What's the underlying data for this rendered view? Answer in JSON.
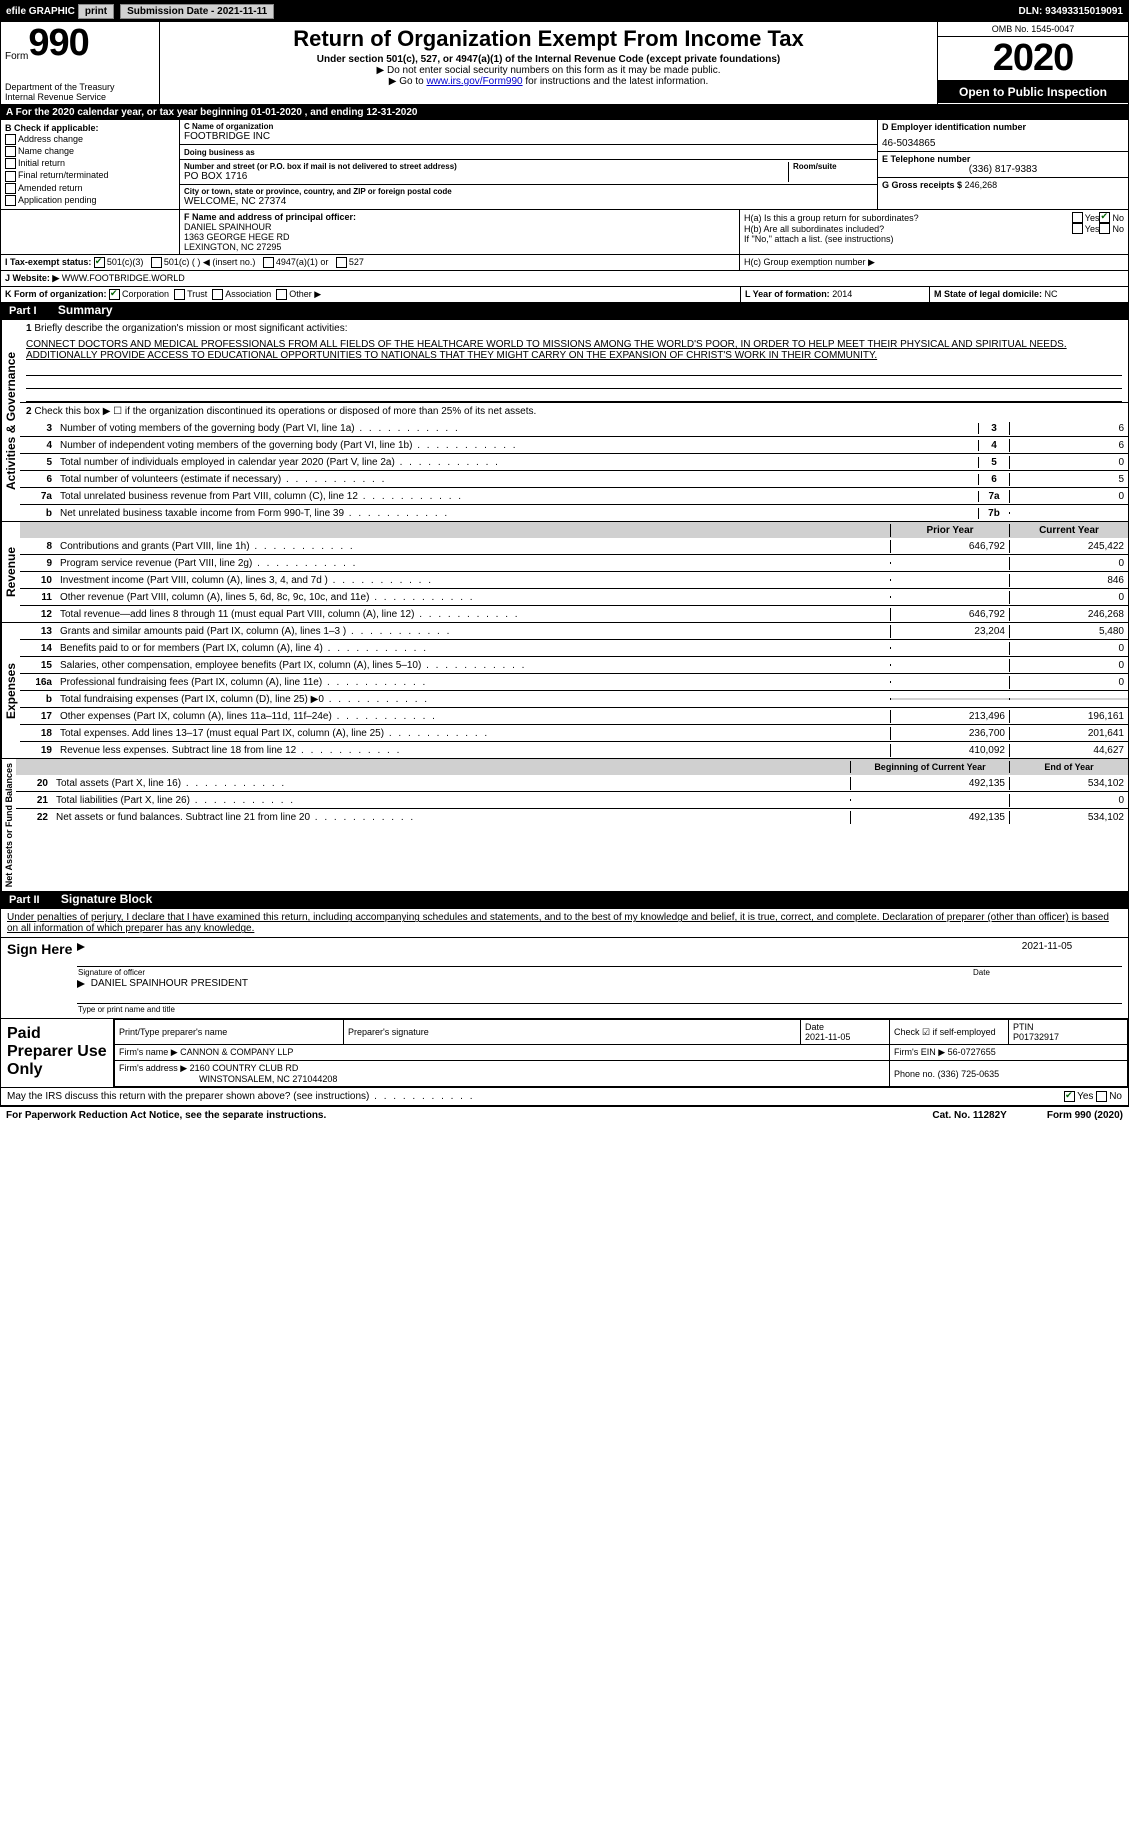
{
  "topbar": {
    "efile": "efile GRAPHIC",
    "print": "print",
    "sub_label": "Submission Date - 2021-11-11",
    "dln_label": "DLN: 93493315019091"
  },
  "header": {
    "form_word": "Form",
    "form_num": "990",
    "dept": "Department of the Treasury\nInternal Revenue Service",
    "title": "Return of Organization Exempt From Income Tax",
    "sub": "Under section 501(c), 527, or 4947(a)(1) of the Internal Revenue Code (except private foundations)",
    "sub2": "▶ Do not enter social security numbers on this form as it may be made public.",
    "sub3_pre": "▶ Go to ",
    "sub3_link": "www.irs.gov/Form990",
    "sub3_post": " for instructions and the latest information.",
    "omb": "OMB No. 1545-0047",
    "year": "2020",
    "open": "Open to Public Inspection"
  },
  "period": "A For the 2020 calendar year, or tax year beginning 01-01-2020    , and ending 12-31-2020",
  "boxB": {
    "title": "B Check if applicable:",
    "items": [
      "Address change",
      "Name change",
      "Initial return",
      "Final return/terminated",
      "Amended return",
      "Application pending"
    ]
  },
  "boxC": {
    "name_lbl": "C Name of organization",
    "name": "FOOTBRIDGE INC",
    "dba_lbl": "Doing business as",
    "addr_lbl": "Number and street (or P.O. box if mail is not delivered to street address)",
    "room_lbl": "Room/suite",
    "addr": "PO BOX 1716",
    "city_lbl": "City or town, state or province, country, and ZIP or foreign postal code",
    "city": "WELCOME, NC  27374"
  },
  "boxD": {
    "lbl": "D Employer identification number",
    "val": "46-5034865"
  },
  "boxE": {
    "lbl": "E Telephone number",
    "val": "(336) 817-9383"
  },
  "boxG": {
    "lbl": "G Gross receipts $",
    "val": "246,268"
  },
  "boxF": {
    "lbl": "F  Name and address of principal officer:",
    "name": "DANIEL SPAINHOUR",
    "addr1": "1363 GEORGE HEGE RD",
    "addr2": "LEXINGTON, NC  27295"
  },
  "boxH": {
    "a": "H(a)  Is this a group return for subordinates?",
    "b": "H(b)  Are all subordinates included?",
    "b2": "If \"No,\" attach a list. (see instructions)",
    "c": "H(c)  Group exemption number ▶",
    "yes": "Yes",
    "no": "No"
  },
  "rowI": {
    "lbl": "I   Tax-exempt status:",
    "o1": "501(c)(3)",
    "o2": "501(c) (  ) ◀ (insert no.)",
    "o3": "4947(a)(1) or",
    "o4": "527"
  },
  "rowJ": {
    "lbl": "J  Website: ▶",
    "val": "WWW.FOOTBRIDGE.WORLD"
  },
  "rowK": {
    "lbl": "K Form of organization:",
    "corp": "Corporation",
    "trust": "Trust",
    "assoc": "Association",
    "other": "Other ▶"
  },
  "rowL": {
    "lbl": "L Year of formation:",
    "val": "2014"
  },
  "rowM": {
    "lbl": "M State of legal domicile:",
    "val": "NC"
  },
  "part1": {
    "tag": "Part I",
    "title": "Summary"
  },
  "summary": {
    "l1": "Briefly describe the organization's mission or most significant activities:",
    "mission": "CONNECT DOCTORS AND MEDICAL PROFESSIONALS FROM ALL FIELDS OF THE HEALTHCARE WORLD TO MISSIONS AMONG THE WORLD'S POOR, IN ORDER TO HELP MEET THEIR PHYSICAL AND SPIRITUAL NEEDS. ADDITIONALLY PROVIDE ACCESS TO EDUCATIONAL OPPORTUNITIES TO NATIONALS THAT THEY MIGHT CARRY ON THE EXPANSION OF CHRIST'S WORK IN THEIR COMMUNITY.",
    "l2": "Check this box ▶ ☐ if the organization discontinued its operations or disposed of more than 25% of its net assets.",
    "rows": [
      {
        "n": "3",
        "d": "Number of voting members of the governing body (Part VI, line 1a)",
        "box": "3",
        "v": "6"
      },
      {
        "n": "4",
        "d": "Number of independent voting members of the governing body (Part VI, line 1b)",
        "box": "4",
        "v": "6"
      },
      {
        "n": "5",
        "d": "Total number of individuals employed in calendar year 2020 (Part V, line 2a)",
        "box": "5",
        "v": "0"
      },
      {
        "n": "6",
        "d": "Total number of volunteers (estimate if necessary)",
        "box": "6",
        "v": "5"
      },
      {
        "n": "7a",
        "d": "Total unrelated business revenue from Part VIII, column (C), line 12",
        "box": "7a",
        "v": "0"
      },
      {
        "n": "b",
        "d": "Net unrelated business taxable income from Form 990-T, line 39",
        "box": "7b",
        "v": ""
      }
    ]
  },
  "pycy": {
    "py": "Prior Year",
    "cy": "Current Year"
  },
  "revenue": {
    "label": "Revenue",
    "rows": [
      {
        "n": "8",
        "d": "Contributions and grants (Part VIII, line 1h)",
        "py": "646,792",
        "cy": "245,422"
      },
      {
        "n": "9",
        "d": "Program service revenue (Part VIII, line 2g)",
        "py": "",
        "cy": "0"
      },
      {
        "n": "10",
        "d": "Investment income (Part VIII, column (A), lines 3, 4, and 7d )",
        "py": "",
        "cy": "846"
      },
      {
        "n": "11",
        "d": "Other revenue (Part VIII, column (A), lines 5, 6d, 8c, 9c, 10c, and 11e)",
        "py": "",
        "cy": "0"
      },
      {
        "n": "12",
        "d": "Total revenue—add lines 8 through 11 (must equal Part VIII, column (A), line 12)",
        "py": "646,792",
        "cy": "246,268"
      }
    ]
  },
  "expenses": {
    "label": "Expenses",
    "rows": [
      {
        "n": "13",
        "d": "Grants and similar amounts paid (Part IX, column (A), lines 1–3 )",
        "py": "23,204",
        "cy": "5,480"
      },
      {
        "n": "14",
        "d": "Benefits paid to or for members (Part IX, column (A), line 4)",
        "py": "",
        "cy": "0"
      },
      {
        "n": "15",
        "d": "Salaries, other compensation, employee benefits (Part IX, column (A), lines 5–10)",
        "py": "",
        "cy": "0"
      },
      {
        "n": "16a",
        "d": "Professional fundraising fees (Part IX, column (A), line 11e)",
        "py": "",
        "cy": "0"
      },
      {
        "n": "b",
        "d": "Total fundraising expenses (Part IX, column (D), line 25) ▶0",
        "py": "",
        "cy": ""
      },
      {
        "n": "17",
        "d": "Other expenses (Part IX, column (A), lines 11a–11d, 11f–24e)",
        "py": "213,496",
        "cy": "196,161"
      },
      {
        "n": "18",
        "d": "Total expenses. Add lines 13–17 (must equal Part IX, column (A), line 25)",
        "py": "236,700",
        "cy": "201,641"
      },
      {
        "n": "19",
        "d": "Revenue less expenses. Subtract line 18 from line 12",
        "py": "410,092",
        "cy": "44,627"
      }
    ]
  },
  "bycy": {
    "by": "Beginning of Current Year",
    "ey": "End of Year"
  },
  "net": {
    "label": "Net Assets or Fund Balances",
    "rows": [
      {
        "n": "20",
        "d": "Total assets (Part X, line 16)",
        "py": "492,135",
        "cy": "534,102"
      },
      {
        "n": "21",
        "d": "Total liabilities (Part X, line 26)",
        "py": "",
        "cy": "0"
      },
      {
        "n": "22",
        "d": "Net assets or fund balances. Subtract line 21 from line 20",
        "py": "492,135",
        "cy": "534,102"
      }
    ]
  },
  "part2": {
    "tag": "Part II",
    "title": "Signature Block"
  },
  "sig": {
    "decl": "Under penalties of perjury, I declare that I have examined this return, including accompanying schedules and statements, and to the best of my knowledge and belief, it is true, correct, and complete. Declaration of preparer (other than officer) is based on all information of which preparer has any knowledge.",
    "here": "Sign Here",
    "sigoff": "Signature of officer",
    "date": "Date",
    "dateval": "2021-11-05",
    "name": "DANIEL SPAINHOUR  PRESIDENT",
    "name_lbl": "Type or print name and title"
  },
  "paid": {
    "label": "Paid Preparer Use Only",
    "h_prep": "Print/Type preparer's name",
    "h_sig": "Preparer's signature",
    "h_date": "Date",
    "dateval": "2021-11-05",
    "h_check": "Check ☑ if self-employed",
    "h_ptin": "PTIN",
    "ptin": "P01732917",
    "firm_lbl": "Firm's name   ▶",
    "firm": "CANNON & COMPANY LLP",
    "ein_lbl": "Firm's EIN ▶",
    "ein": "56-0727655",
    "addr_lbl": "Firm's address ▶",
    "addr": "2160 COUNTRY CLUB RD",
    "addr2": "WINSTONSALEM, NC  271044208",
    "phone_lbl": "Phone no.",
    "phone": "(336) 725-0635"
  },
  "discuss": "May the IRS discuss this return with the preparer shown above? (see instructions)",
  "footer": {
    "pra": "For Paperwork Reduction Act Notice, see the separate instructions.",
    "cat": "Cat. No. 11282Y",
    "form": "Form 990 (2020)"
  },
  "sidelabels": {
    "gov": "Activities & Governance"
  }
}
